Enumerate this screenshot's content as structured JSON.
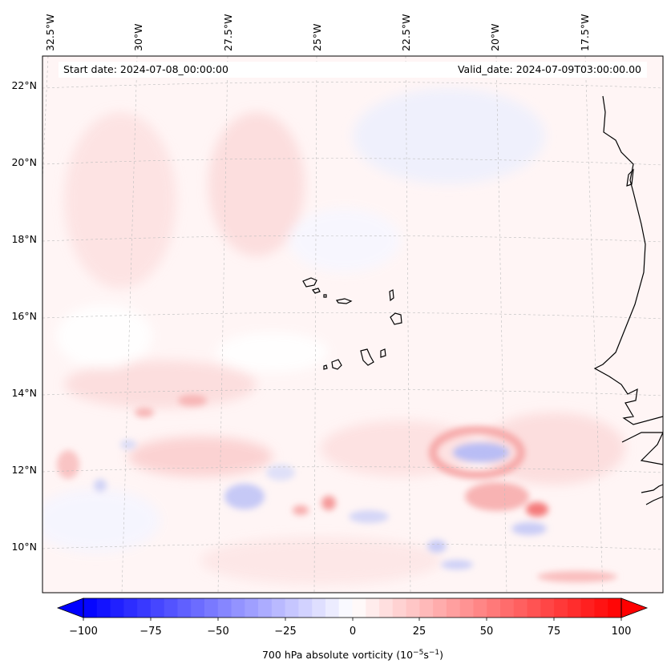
{
  "header": {
    "start_date": "Start date: 2024-07-08_00:00:00",
    "valid_date": "Valid_date: 2024-07-09T03:00:00.00"
  },
  "map": {
    "projection": "Lambert conformal",
    "lon_labels": [
      "32.5°W",
      "30°W",
      "27.5°W",
      "25°W",
      "22.5°W",
      "20°W",
      "17.5°W"
    ],
    "lat_labels": [
      "22°N",
      "20°N",
      "18°N",
      "16°N",
      "14°N",
      "12°N",
      "10°N"
    ],
    "field": "700 hPa absolute vorticity",
    "features": [
      "Cape Verde islands",
      "West African coastline"
    ]
  },
  "colorbar": {
    "ticks": [
      "−100",
      "−75",
      "−50",
      "−25",
      "0",
      "25",
      "50",
      "75",
      "100"
    ],
    "label": "700 hPa absolute vorticity (10",
    "label_exp1": "−5",
    "label_mid": "s",
    "label_exp2": "−1",
    "label_end": ")",
    "min": -100,
    "max": 100,
    "cmap": "bwr",
    "neg_color": "#0000ff",
    "pos_color": "#ff0000"
  }
}
